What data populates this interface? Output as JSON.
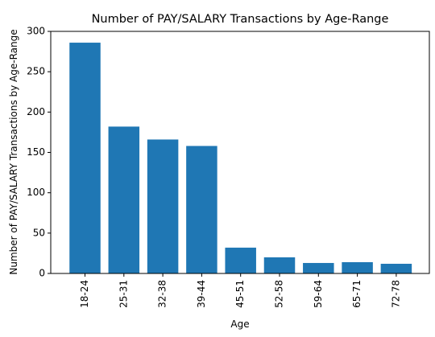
{
  "chart_data": {
    "type": "bar",
    "title": "Number of PAY/SALARY Transactions by Age-Range",
    "xlabel": "Age",
    "ylabel": "Number of PAY/SALARY Transactions by Age-Range",
    "categories": [
      "18-24",
      "25-31",
      "32-38",
      "39-44",
      "45-51",
      "52-58",
      "59-64",
      "65-71",
      "72-78"
    ],
    "values": [
      286,
      182,
      166,
      158,
      32,
      20,
      13,
      14,
      12
    ],
    "ylim": [
      0,
      300
    ],
    "yticks": [
      0,
      50,
      100,
      150,
      200,
      250,
      300
    ],
    "grid": false,
    "bar_color": "#1f77b4"
  }
}
